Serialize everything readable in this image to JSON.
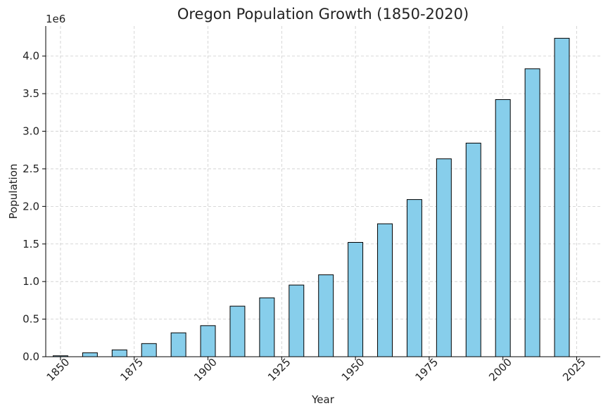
{
  "chart_data": {
    "type": "bar",
    "title": "Oregon Population Growth (1850-2020)",
    "xlabel": "Year",
    "ylabel": "Population",
    "y_offset_label": "1e6",
    "x": [
      1850,
      1860,
      1870,
      1880,
      1890,
      1900,
      1910,
      1920,
      1930,
      1940,
      1950,
      1960,
      1970,
      1980,
      1990,
      2000,
      2010,
      2020
    ],
    "values": [
      12093,
      52465,
      90923,
      174768,
      317704,
      413536,
      672765,
      783389,
      953786,
      1089684,
      1521341,
      1768687,
      2091385,
      2633105,
      2842321,
      3421399,
      3831074,
      4237256
    ],
    "xlim": [
      1845,
      2033
    ],
    "ylim": [
      0,
      4400000
    ],
    "x_ticks": [
      "1850",
      "1875",
      "1900",
      "1925",
      "1950",
      "1975",
      "2000",
      "2025"
    ],
    "y_ticks": [
      "0.0",
      "0.5",
      "1.0",
      "1.5",
      "2.0",
      "2.5",
      "3.0",
      "3.5",
      "4.0"
    ],
    "grid": true,
    "bar_color": "#87ceeb",
    "edge_color": "#000000"
  }
}
